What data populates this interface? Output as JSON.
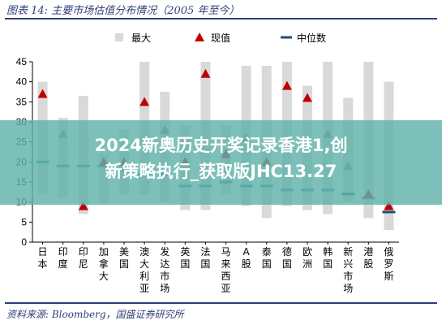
{
  "header": {
    "title": "图表 14:  主要市场估值分布情况（2005 年至今）"
  },
  "source": "资料来源:  Bloomberg，国盛证券研究所",
  "overlay": {
    "line1": "2024新奥历史开奖记录香港1,创",
    "line2": "新策略执行_获取版JHC13.27"
  },
  "legend": {
    "max_label": "最大",
    "current_label": "现值",
    "median_label": "中位数"
  },
  "colors": {
    "bar": "#d9d9d9",
    "current": "#c00000",
    "current_alt": "#7f7f7f",
    "median": "#1f4e79",
    "median_alt": "#3a78b7",
    "axis_text": "#000000"
  },
  "chart_data": {
    "type": "bar",
    "ylim": [
      0,
      45
    ],
    "yticks": [
      0,
      5,
      10,
      15,
      20,
      25,
      30,
      35,
      40,
      45
    ],
    "categories": [
      "日本",
      "印度",
      "印尼",
      "加拿大",
      "美国",
      "澳大利亚",
      "发达市场",
      "英国",
      "法国",
      "马来西亚",
      "A股",
      "泰国",
      "德国",
      "欧洲",
      "韩国",
      "新兴市场",
      "港股",
      "俄罗斯"
    ],
    "series": [
      {
        "name": "最大",
        "low": [
          12,
          11,
          7,
          10,
          12,
          12,
          10,
          8,
          8,
          12,
          9,
          6,
          9,
          8,
          7,
          10,
          6,
          3
        ],
        "high": [
          40,
          31,
          36.5,
          22,
          28,
          45,
          37.5,
          29,
          45,
          29,
          44,
          44,
          45,
          39,
          45,
          36,
          45,
          40
        ]
      },
      {
        "name": "现值",
        "values": [
          37,
          27,
          9,
          20,
          20,
          35,
          28,
          20,
          42,
          22,
          26,
          20,
          39,
          36,
          27,
          19,
          12,
          9
        ]
      },
      {
        "name": "中位数",
        "values": [
          20,
          19,
          19,
          19,
          18,
          17,
          17,
          14,
          14,
          15,
          14,
          14,
          13,
          13,
          13,
          12,
          11,
          7.5
        ]
      }
    ]
  }
}
